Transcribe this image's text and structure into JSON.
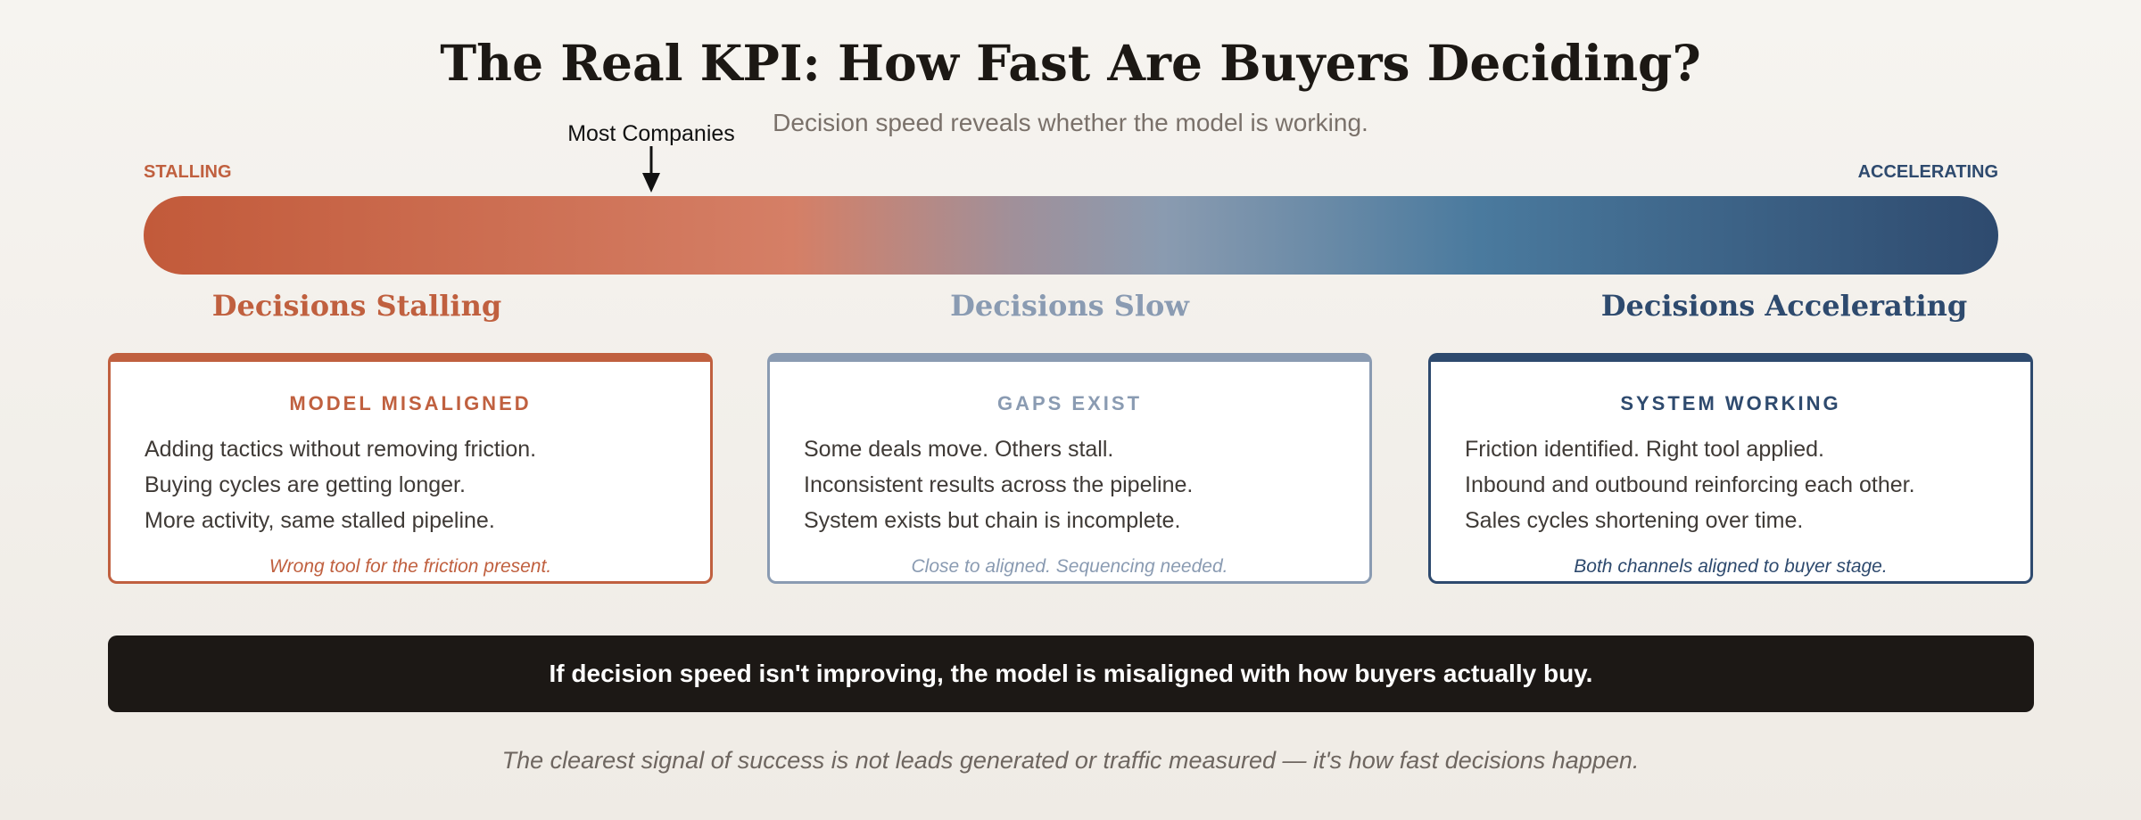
{
  "header": {
    "title": "The Real KPI: How Fast Are Buyers Deciding?",
    "subtitle": "Decision speed reveals whether the model is working."
  },
  "scale": {
    "marker": "Most Companies",
    "left_label": "STALLING",
    "right_label": "ACCELERATING"
  },
  "zones": [
    {
      "heading": "Decisions Stalling",
      "color": "#c0603f"
    },
    {
      "heading": "Decisions Slow",
      "color": "#8a9bb2"
    },
    {
      "heading": "Decisions Accelerating",
      "color": "#2e4a6e"
    }
  ],
  "cards": [
    {
      "title": "MODEL MISALIGNED",
      "lines": [
        "Adding tactics without removing friction.",
        "Buying cycles are getting longer.",
        "More activity, same stalled pipeline."
      ],
      "note": "Wrong tool for the friction present."
    },
    {
      "title": "GAPS EXIST",
      "lines": [
        "Some deals move. Others stall.",
        "Inconsistent results across the pipeline.",
        "System exists but chain is incomplete."
      ],
      "note": "Close to aligned. Sequencing needed."
    },
    {
      "title": "SYSTEM WORKING",
      "lines": [
        "Friction identified. Right tool applied.",
        "Inbound and outbound reinforcing each other.",
        "Sales cycles shortening over time."
      ],
      "note": "Both channels aligned to buyer stage."
    }
  ],
  "banner": "If decision speed isn't improving, the model is misaligned with how buyers actually buy.",
  "footer": "The clearest signal of success is not leads generated or traffic measured — it's how fast decisions happen."
}
